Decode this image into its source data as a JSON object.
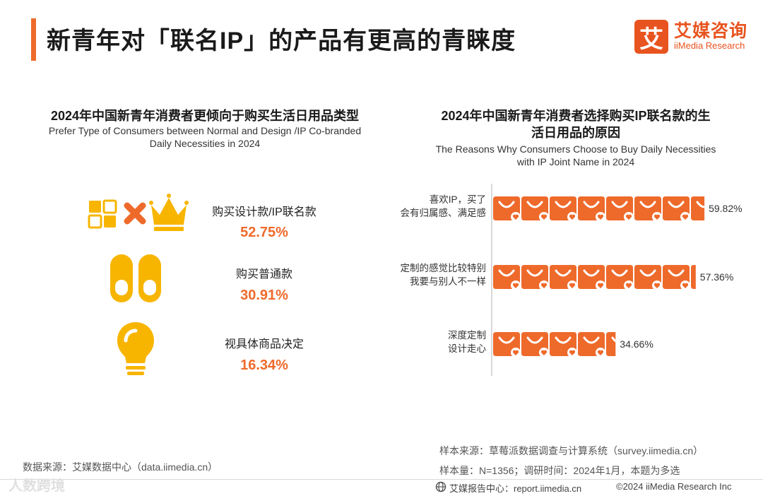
{
  "header": {
    "title": "新青年对「联名IP」的产品有更高的青睐度",
    "logo_mark": "艾",
    "logo_cn": "艾媒咨询",
    "logo_en": "iiMedia Research"
  },
  "left_panel": {
    "title": "2024年中国新青年消费者更倾向于购买生活日用品类型",
    "subtitle_line1": "Prefer Type of Consumers between Normal and Design /IP Co-branded",
    "subtitle_line2": "Daily Necessities in 2024",
    "items": [
      {
        "label": "购买设计款/IP联名款",
        "value": "52.75%",
        "icon": "design-ip-crown-icon"
      },
      {
        "label": "购买普通款",
        "value": "30.91%",
        "icon": "slippers-icon"
      },
      {
        "label": "视具体商品决定",
        "value": "16.34%",
        "icon": "lightbulb-icon"
      }
    ]
  },
  "right_panel": {
    "title_line1": "2024年中国新青年消费者选择购买IP联名款的生",
    "title_line2": "活日用品的原因",
    "subtitle_line1": "The Reasons Why Consumers Choose to Buy Daily Necessities",
    "subtitle_line2": "with IP Joint Name in 2024"
  },
  "chart_data": {
    "type": "bar",
    "orientation": "horizontal",
    "categories": [
      [
        "喜欢IP，买了",
        "会有归属感、满足感"
      ],
      [
        "定制的感觉比较特别",
        "我要与别人不一样"
      ],
      [
        "深度定制",
        "设计走心"
      ]
    ],
    "values": [
      59.82,
      57.36,
      34.66
    ],
    "value_labels": [
      "59.82%",
      "57.36%",
      "34.66%"
    ],
    "unit": "%",
    "mark": "shopping-bag-icon",
    "bar_color": "#ee6a2b"
  },
  "notes": {
    "left_source": "数据来源：艾媒数据中心（data.iimedia.cn）",
    "sample_source": "样本来源：草莓派数据调查与计算系统（survey.iimedia.cn）",
    "sample_size": "样本量：N=1356；调研时间：2024年1月，本题为多选"
  },
  "footer": {
    "report_center": "艾媒报告中心：report.iimedia.cn",
    "copyright": "©2024  iiMedia Research  Inc",
    "watermark": "人数跨境"
  },
  "colors": {
    "accent": "#ee6a2b",
    "icon_yellow": "#f7b500",
    "brand": "#e8541f"
  }
}
